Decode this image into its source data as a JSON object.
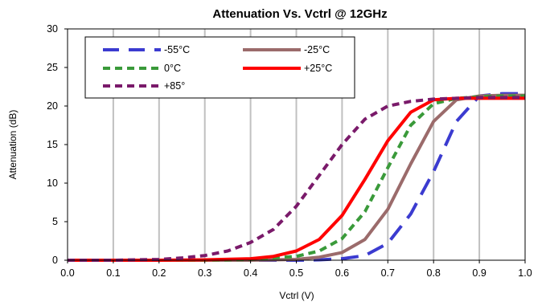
{
  "chart_data": {
    "type": "line",
    "title": "Attenuation Vs. Vctrl @ 12GHz",
    "xlabel": "Vctrl (V)",
    "ylabel": "Attenuation (dB)",
    "xlim": [
      0.0,
      1.0
    ],
    "ylim": [
      0,
      30
    ],
    "x_ticks": [
      "0.0",
      "0.1",
      "0.2",
      "0.3",
      "0.4",
      "0.5",
      "0.6",
      "0.7",
      "0.8",
      "0.9",
      "1.0"
    ],
    "y_ticks": [
      "0",
      "5",
      "10",
      "15",
      "20",
      "25",
      "30"
    ],
    "grid": "vertical",
    "legend_position": "top-left",
    "series": [
      {
        "name": "-55°C",
        "color": "#3b3bd0",
        "dash": "long-dash",
        "x": [
          0.0,
          0.1,
          0.2,
          0.3,
          0.4,
          0.5,
          0.55,
          0.6,
          0.65,
          0.7,
          0.75,
          0.8,
          0.85,
          0.9,
          0.95,
          1.0
        ],
        "y": [
          0,
          0,
          0,
          0,
          0,
          0,
          0.05,
          0.2,
          0.6,
          2.2,
          6.0,
          11.5,
          18.0,
          21.3,
          21.6,
          21.6
        ]
      },
      {
        "name": "-25°C",
        "color": "#9b6b6b",
        "dash": "solid",
        "x": [
          0.0,
          0.1,
          0.2,
          0.3,
          0.4,
          0.5,
          0.55,
          0.6,
          0.65,
          0.7,
          0.75,
          0.8,
          0.85,
          0.9,
          0.95,
          1.0
        ],
        "y": [
          0,
          0,
          0,
          0,
          0,
          0.1,
          0.4,
          1.0,
          2.7,
          6.6,
          12.5,
          18.0,
          20.8,
          21.3,
          21.4,
          21.4
        ]
      },
      {
        "name": "0°C",
        "color": "#3a9a3a",
        "dash": "short-dash",
        "x": [
          0.0,
          0.1,
          0.2,
          0.3,
          0.4,
          0.5,
          0.55,
          0.6,
          0.65,
          0.7,
          0.75,
          0.8,
          0.85,
          0.9,
          0.95,
          1.0
        ],
        "y": [
          0,
          0,
          0,
          0,
          0.1,
          0.5,
          1.2,
          2.8,
          6.3,
          12.0,
          17.5,
          20.3,
          21.0,
          21.2,
          21.3,
          21.3
        ]
      },
      {
        "name": "+25°C",
        "color": "#ff0000",
        "dash": "solid",
        "x": [
          0.0,
          0.1,
          0.2,
          0.3,
          0.4,
          0.45,
          0.5,
          0.55,
          0.6,
          0.65,
          0.7,
          0.75,
          0.8,
          0.85,
          0.9,
          0.95,
          1.0
        ],
        "y": [
          0,
          0,
          0,
          0.05,
          0.2,
          0.5,
          1.2,
          2.7,
          5.8,
          10.5,
          15.5,
          19.2,
          20.8,
          21.0,
          21.0,
          21.0,
          21.0
        ]
      },
      {
        "name": "+85°",
        "color": "#7a1a6a",
        "dash": "short-dash",
        "x": [
          0.0,
          0.1,
          0.2,
          0.25,
          0.3,
          0.35,
          0.4,
          0.45,
          0.5,
          0.55,
          0.6,
          0.65,
          0.7,
          0.75,
          0.8,
          0.85,
          0.9,
          0.95,
          1.0
        ],
        "y": [
          0,
          0,
          0.1,
          0.3,
          0.6,
          1.2,
          2.3,
          4.0,
          7.0,
          11.0,
          15.0,
          18.3,
          20.0,
          20.6,
          20.9,
          21.0,
          21.1,
          21.1,
          21.1
        ]
      }
    ]
  }
}
